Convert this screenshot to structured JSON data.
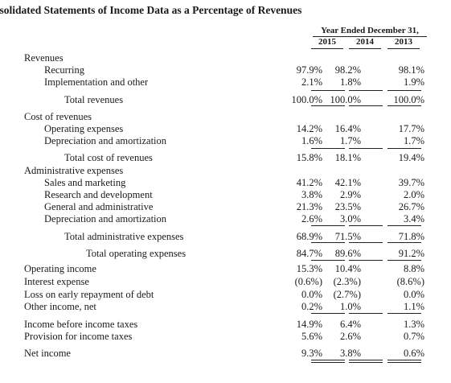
{
  "title": "nsolidated Statements of Income Data as a Percentage of Revenues",
  "header": {
    "period": "Year Ended December 31,",
    "years": [
      "2015",
      "2014",
      "2013"
    ]
  },
  "rows": [
    {
      "label": "Revenues",
      "values": [
        "",
        "",
        ""
      ]
    },
    {
      "label": "Recurring",
      "values": [
        "97.9%",
        "98.2%",
        "98.1%"
      ]
    },
    {
      "label": "Implementation and other",
      "values": [
        "2.1%",
        "1.8%",
        "1.9%"
      ]
    },
    {
      "label": "Total revenues",
      "values": [
        "100.0%",
        "100.0%",
        "100.0%"
      ]
    },
    {
      "label": "Cost of revenues",
      "values": [
        "",
        "",
        ""
      ]
    },
    {
      "label": "Operating expenses",
      "values": [
        "14.2%",
        "16.4%",
        "17.7%"
      ]
    },
    {
      "label": "Depreciation and amortization",
      "values": [
        "1.6%",
        "1.7%",
        "1.7%"
      ]
    },
    {
      "label": "Total cost of revenues",
      "values": [
        "15.8%",
        "18.1%",
        "19.4%"
      ]
    },
    {
      "label": "Administrative expenses",
      "values": [
        "",
        "",
        ""
      ]
    },
    {
      "label": "Sales and marketing",
      "values": [
        "41.2%",
        "42.1%",
        "39.7%"
      ]
    },
    {
      "label": "Research and development",
      "values": [
        "3.8%",
        "2.9%",
        "2.0%"
      ]
    },
    {
      "label": "General and administrative",
      "values": [
        "21.3%",
        "23.5%",
        "26.7%"
      ]
    },
    {
      "label": "Depreciation and amortization",
      "values": [
        "2.6%",
        "3.0%",
        "3.4%"
      ]
    },
    {
      "label": "Total administrative expenses",
      "values": [
        "68.9%",
        "71.5%",
        "71.8%"
      ]
    },
    {
      "label": "Total operating expenses",
      "values": [
        "84.7%",
        "89.6%",
        "91.2%"
      ]
    },
    {
      "label": "Operating income",
      "values": [
        "15.3%",
        "10.4%",
        "8.8%"
      ]
    },
    {
      "label": "Interest expense",
      "values": [
        "(0.6%)",
        "(2.3%)",
        "(8.6%)"
      ]
    },
    {
      "label": "Loss on early repayment of debt",
      "values": [
        "0.0%",
        "(2.7%)",
        "0.0%"
      ]
    },
    {
      "label": "Other income, net",
      "values": [
        "0.2%",
        "1.0%",
        "1.1%"
      ]
    },
    {
      "label": "Income before income taxes",
      "values": [
        "14.9%",
        "6.4%",
        "1.3%"
      ]
    },
    {
      "label": "Provision for income taxes",
      "values": [
        "5.6%",
        "2.6%",
        "0.7%"
      ]
    },
    {
      "label": "Net income",
      "values": [
        "9.3%",
        "3.8%",
        "0.6%"
      ]
    }
  ]
}
